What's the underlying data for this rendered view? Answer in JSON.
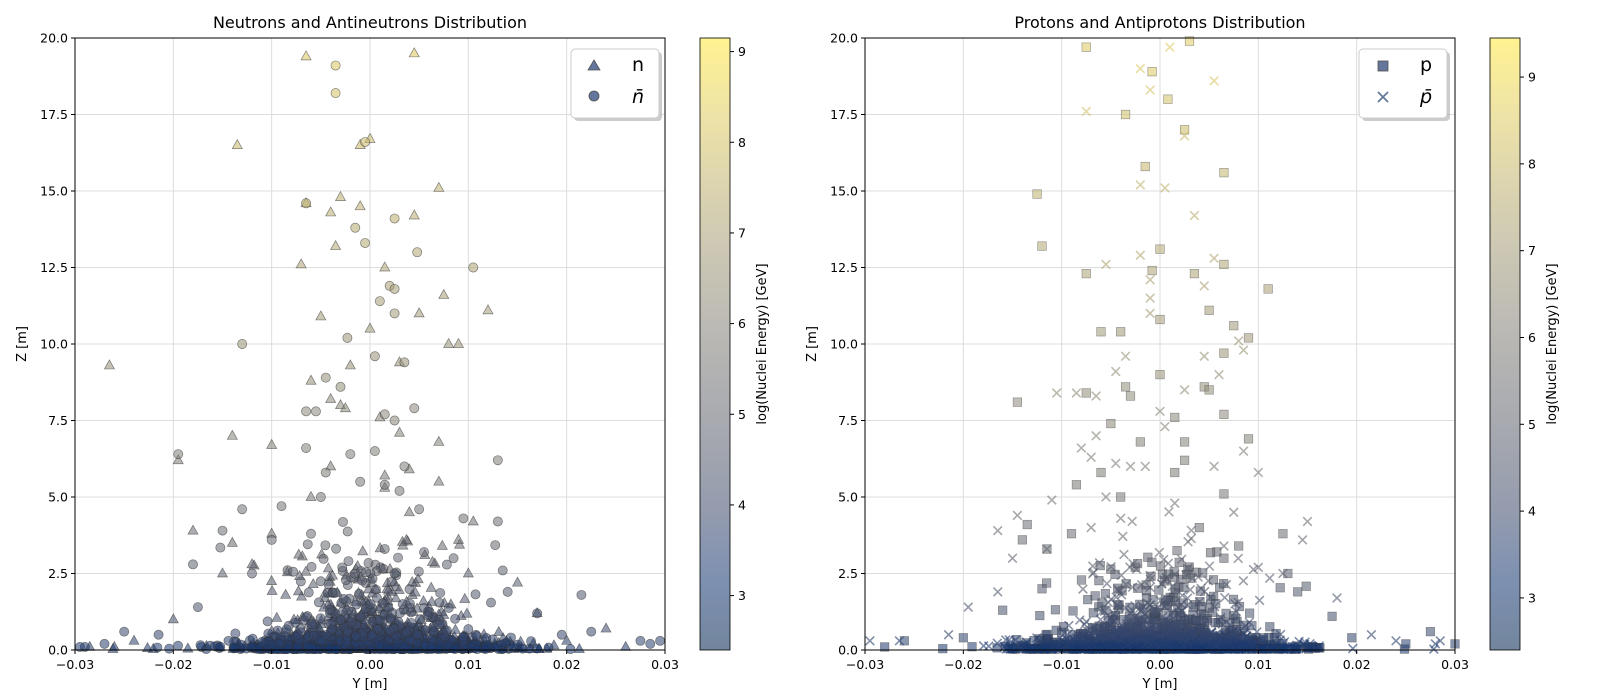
{
  "colors": {
    "cmap": [
      "#00224e",
      "#123570",
      "#3b496c",
      "#575d6d",
      "#707173",
      "#8a8678",
      "#a69d75",
      "#c4b56c",
      "#e4cf5b",
      "#fee838"
    ],
    "axes": "#000000",
    "grid": "#dddddd",
    "marker_edge": "#333333"
  },
  "legend_left": {
    "items": [
      "n",
      "n̄"
    ],
    "markers": [
      "triangle",
      "circle"
    ]
  },
  "legend_right": {
    "items": [
      "p",
      "p̄"
    ],
    "markers": [
      "square",
      "x"
    ]
  },
  "chart_data": [
    {
      "type": "scatter",
      "title": "Neutrons and Antineutrons Distribution",
      "xlabel": "Y [m]",
      "ylabel": "Z [m]",
      "xlim": [
        -0.03,
        0.03
      ],
      "ylim": [
        0,
        20
      ],
      "xticks": [
        "−0.03",
        "−0.02",
        "−0.01",
        "0.00",
        "0.01",
        "0.02",
        "0.03"
      ],
      "yticks": [
        "0.0",
        "2.5",
        "5.0",
        "7.5",
        "10.0",
        "12.5",
        "15.0",
        "17.5",
        "20.0"
      ],
      "grid": true,
      "legend_position": "upper right",
      "colorbar": {
        "label": "log(Nuclei Energy) [GeV]",
        "range": [
          2.4,
          9.15
        ],
        "ticks": [
          "3",
          "4",
          "5",
          "6",
          "7",
          "8",
          "9"
        ]
      },
      "series": [
        {
          "name": "n",
          "marker": "triangle",
          "points": [
            [
              -0.0065,
              19.4
            ],
            [
              0.0045,
              19.5
            ],
            [
              -0.0135,
              16.5
            ],
            [
              -0.001,
              16.5
            ],
            [
              0.0,
              16.7
            ],
            [
              0.007,
              15.1
            ],
            [
              -0.0065,
              14.6
            ],
            [
              -0.003,
              14.8
            ],
            [
              -0.004,
              14.3
            ],
            [
              -0.001,
              14.5
            ],
            [
              0.0045,
              14.2
            ],
            [
              -0.0035,
              13.2
            ],
            [
              -0.007,
              12.6
            ],
            [
              0.0015,
              12.5
            ],
            [
              0.012,
              11.1
            ],
            [
              0.0075,
              11.6
            ],
            [
              -0.005,
              10.9
            ],
            [
              0.005,
              11.0
            ],
            [
              0.0,
              10.5
            ],
            [
              -0.0265,
              9.3
            ],
            [
              0.008,
              10.0
            ],
            [
              0.009,
              10.0
            ],
            [
              -0.002,
              9.3
            ],
            [
              0.003,
              9.4
            ],
            [
              -0.006,
              8.8
            ],
            [
              -0.004,
              8.2
            ],
            [
              -0.003,
              8.0
            ],
            [
              -0.0025,
              7.9
            ],
            [
              0.001,
              7.6
            ],
            [
              -0.014,
              7.0
            ],
            [
              0.003,
              7.1
            ],
            [
              0.007,
              6.8
            ],
            [
              -0.01,
              6.7
            ],
            [
              -0.004,
              6.0
            ],
            [
              0.0015,
              5.7
            ],
            [
              -0.0195,
              6.2
            ],
            [
              0.004,
              5.9
            ],
            [
              0.007,
              5.5
            ],
            [
              -0.006,
              5.0
            ],
            [
              0.0015,
              5.3
            ],
            [
              -0.018,
              3.9
            ],
            [
              -0.01,
              3.8
            ],
            [
              -0.014,
              3.5
            ],
            [
              0.009,
              3.6
            ],
            [
              0.0105,
              4.2
            ],
            [
              0.004,
              4.5
            ],
            [
              -0.015,
              2.5
            ],
            [
              -0.012,
              2.8
            ],
            [
              0.01,
              2.5
            ],
            [
              0.015,
              2.2
            ],
            [
              -0.02,
              1.0
            ],
            [
              0.017,
              1.2
            ],
            [
              0.02,
              0.3
            ],
            [
              -0.024,
              0.3
            ],
            [
              0.024,
              0.7
            ],
            [
              -0.026,
              0.1
            ],
            [
              -0.0285,
              0.1
            ],
            [
              0.026,
              0.1
            ]
          ]
        },
        {
          "name": "n̄",
          "marker": "circle",
          "points": [
            [
              -0.0035,
              19.1
            ],
            [
              -0.0035,
              18.2
            ],
            [
              -0.0005,
              16.6
            ],
            [
              -0.0065,
              14.6
            ],
            [
              0.0025,
              14.1
            ],
            [
              -0.0015,
              13.8
            ],
            [
              -0.0005,
              13.3
            ],
            [
              0.0048,
              13.0
            ],
            [
              0.0105,
              12.5
            ],
            [
              0.002,
              11.9
            ],
            [
              0.0025,
              11.8
            ],
            [
              0.001,
              11.4
            ],
            [
              0.0025,
              11.0
            ],
            [
              -0.0023,
              10.2
            ],
            [
              -0.013,
              10.0
            ],
            [
              0.0005,
              9.6
            ],
            [
              -0.0045,
              8.9
            ],
            [
              0.0035,
              9.4
            ],
            [
              -0.003,
              8.6
            ],
            [
              -0.0065,
              7.8
            ],
            [
              -0.0055,
              7.8
            ],
            [
              0.0015,
              7.7
            ],
            [
              0.0045,
              7.9
            ],
            [
              0.0025,
              7.5
            ],
            [
              -0.0065,
              6.6
            ],
            [
              -0.002,
              6.4
            ],
            [
              0.0005,
              6.5
            ],
            [
              0.0035,
              6.0
            ],
            [
              0.013,
              6.2
            ],
            [
              -0.0195,
              6.4
            ],
            [
              -0.0045,
              5.8
            ],
            [
              -0.001,
              5.5
            ],
            [
              0.0015,
              5.4
            ],
            [
              0.003,
              5.2
            ],
            [
              -0.005,
              5.0
            ],
            [
              -0.013,
              4.6
            ],
            [
              -0.009,
              4.7
            ],
            [
              0.005,
              4.6
            ],
            [
              0.0095,
              4.3
            ],
            [
              0.013,
              4.2
            ],
            [
              -0.015,
              3.9
            ],
            [
              -0.01,
              3.6
            ],
            [
              -0.006,
              3.8
            ],
            [
              -0.018,
              2.8
            ],
            [
              -0.012,
              2.5
            ],
            [
              0.0015,
              3.3
            ],
            [
              0.0055,
              3.2
            ],
            [
              0.0085,
              3.0
            ],
            [
              0.0135,
              2.6
            ],
            [
              0.0025,
              2.5
            ],
            [
              0.014,
              1.9
            ],
            [
              0.0215,
              1.8
            ],
            [
              -0.0175,
              1.4
            ],
            [
              0.017,
              1.2
            ],
            [
              -0.0215,
              0.5
            ],
            [
              -0.025,
              0.6
            ],
            [
              0.0225,
              0.6
            ],
            [
              0.0195,
              0.5
            ],
            [
              -0.027,
              0.2
            ],
            [
              0.0275,
              0.3
            ],
            [
              0.0295,
              0.3
            ],
            [
              0.0285,
              0.2
            ],
            [
              -0.029,
              0.1
            ],
            [
              -0.0295,
              0.1
            ]
          ]
        }
      ]
    },
    {
      "type": "scatter",
      "title": "Protons and Antiprotons Distribution",
      "xlabel": "Y [m]",
      "ylabel": "Z [m]",
      "xlim": [
        -0.03,
        0.03
      ],
      "ylim": [
        0,
        20
      ],
      "xticks": [
        "−0.03",
        "−0.02",
        "−0.01",
        "0.00",
        "0.01",
        "0.02",
        "0.03"
      ],
      "yticks": [
        "0.0",
        "2.5",
        "5.0",
        "7.5",
        "10.0",
        "12.5",
        "15.0",
        "17.5",
        "20.0"
      ],
      "grid": true,
      "legend_position": "upper right",
      "colorbar": {
        "label": "log(Nuclei Energy) [GeV]",
        "range": [
          2.4,
          9.45
        ],
        "ticks": [
          "3",
          "4",
          "5",
          "6",
          "7",
          "8",
          "9"
        ]
      },
      "series": [
        {
          "name": "p",
          "marker": "square",
          "points": [
            [
              -0.0075,
              19.7
            ],
            [
              0.003,
              19.9
            ],
            [
              -0.0008,
              18.9
            ],
            [
              0.0008,
              18.0
            ],
            [
              0.0025,
              17.0
            ],
            [
              -0.0035,
              17.5
            ],
            [
              -0.0015,
              15.8
            ],
            [
              0.0065,
              15.6
            ],
            [
              -0.0125,
              14.9
            ],
            [
              -0.012,
              13.2
            ],
            [
              -0.0075,
              12.3
            ],
            [
              0.0,
              13.1
            ],
            [
              -0.0008,
              12.4
            ],
            [
              0.0035,
              12.3
            ],
            [
              0.0065,
              12.6
            ],
            [
              0.011,
              11.8
            ],
            [
              0.005,
              11.1
            ],
            [
              -0.006,
              10.4
            ],
            [
              -0.004,
              10.4
            ],
            [
              0.0,
              10.8
            ],
            [
              0.0075,
              10.6
            ],
            [
              0.009,
              10.2
            ],
            [
              0.0065,
              9.7
            ],
            [
              -0.0145,
              8.1
            ],
            [
              -0.0075,
              8.4
            ],
            [
              0.0,
              9.0
            ],
            [
              -0.0035,
              8.6
            ],
            [
              -0.003,
              8.3
            ],
            [
              0.0045,
              8.6
            ],
            [
              0.0015,
              7.6
            ],
            [
              -0.005,
              7.4
            ],
            [
              0.0065,
              7.7
            ],
            [
              0.005,
              8.5
            ],
            [
              0.0025,
              6.8
            ],
            [
              -0.002,
              6.8
            ],
            [
              0.009,
              6.9
            ],
            [
              -0.0085,
              5.4
            ],
            [
              -0.006,
              5.8
            ],
            [
              0.0015,
              5.8
            ],
            [
              0.0025,
              6.2
            ],
            [
              -0.004,
              5.0
            ],
            [
              0.0065,
              5.1
            ],
            [
              -0.0135,
              4.1
            ],
            [
              -0.0115,
              3.3
            ],
            [
              -0.009,
              3.8
            ],
            [
              0.004,
              4.0
            ],
            [
              0.0065,
              3.0
            ],
            [
              -0.014,
              3.6
            ],
            [
              0.0125,
              3.8
            ],
            [
              0.008,
              3.4
            ],
            [
              -0.012,
              2.0
            ],
            [
              0.013,
              2.5
            ],
            [
              0.014,
              1.9
            ],
            [
              -0.016,
              1.3
            ],
            [
              0.0175,
              1.1
            ],
            [
              -0.02,
              0.4
            ],
            [
              0.0195,
              0.4
            ],
            [
              0.025,
              0.2
            ],
            [
              0.0275,
              0.6
            ],
            [
              -0.026,
              0.3
            ],
            [
              -0.028,
              0.1
            ],
            [
              0.03,
              0.2
            ]
          ]
        },
        {
          "name": "p̄",
          "marker": "x",
          "points": [
            [
              0.001,
              19.7
            ],
            [
              -0.002,
              19.0
            ],
            [
              0.0055,
              18.6
            ],
            [
              -0.001,
              18.3
            ],
            [
              -0.0075,
              17.6
            ],
            [
              0.0025,
              16.8
            ],
            [
              -0.002,
              15.2
            ],
            [
              0.0035,
              14.2
            ],
            [
              0.0005,
              15.1
            ],
            [
              -0.0055,
              12.6
            ],
            [
              -0.002,
              12.9
            ],
            [
              0.0055,
              12.8
            ],
            [
              -0.001,
              12.1
            ],
            [
              0.0045,
              11.9
            ],
            [
              -0.001,
              11.5
            ],
            [
              -0.001,
              11.0
            ],
            [
              0.008,
              10.1
            ],
            [
              0.0085,
              9.8
            ],
            [
              -0.0035,
              9.6
            ],
            [
              -0.0045,
              9.1
            ],
            [
              0.006,
              9.0
            ],
            [
              0.0045,
              9.6
            ],
            [
              -0.0085,
              8.4
            ],
            [
              -0.0105,
              8.4
            ],
            [
              -0.0065,
              8.3
            ],
            [
              0.0025,
              8.5
            ],
            [
              0.0,
              7.8
            ],
            [
              -0.0065,
              7.0
            ],
            [
              0.0005,
              7.3
            ],
            [
              -0.008,
              6.6
            ],
            [
              -0.007,
              6.3
            ],
            [
              -0.003,
              6.0
            ],
            [
              0.0085,
              6.5
            ],
            [
              -0.0045,
              6.1
            ],
            [
              -0.0015,
              6.0
            ],
            [
              0.0055,
              6.0
            ],
            [
              0.01,
              5.8
            ],
            [
              -0.011,
              4.9
            ],
            [
              -0.0055,
              5.0
            ],
            [
              -0.007,
              4.0
            ],
            [
              -0.004,
              4.3
            ],
            [
              0.0015,
              4.8
            ],
            [
              0.0075,
              4.5
            ],
            [
              -0.0145,
              4.4
            ],
            [
              -0.0165,
              3.9
            ],
            [
              0.015,
              4.2
            ],
            [
              -0.0115,
              3.3
            ],
            [
              0.0065,
              3.4
            ],
            [
              0.0145,
              3.6
            ],
            [
              -0.015,
              3.0
            ],
            [
              0.01,
              2.7
            ],
            [
              -0.0165,
              1.9
            ],
            [
              0.018,
              1.7
            ],
            [
              -0.0195,
              1.4
            ],
            [
              0.0125,
              2.5
            ],
            [
              -0.0215,
              0.5
            ],
            [
              0.0215,
              0.5
            ],
            [
              0.024,
              0.3
            ],
            [
              -0.0265,
              0.3
            ],
            [
              0.0285,
              0.3
            ],
            [
              0.028,
              0.2
            ],
            [
              -0.0295,
              0.3
            ]
          ]
        }
      ]
    }
  ]
}
